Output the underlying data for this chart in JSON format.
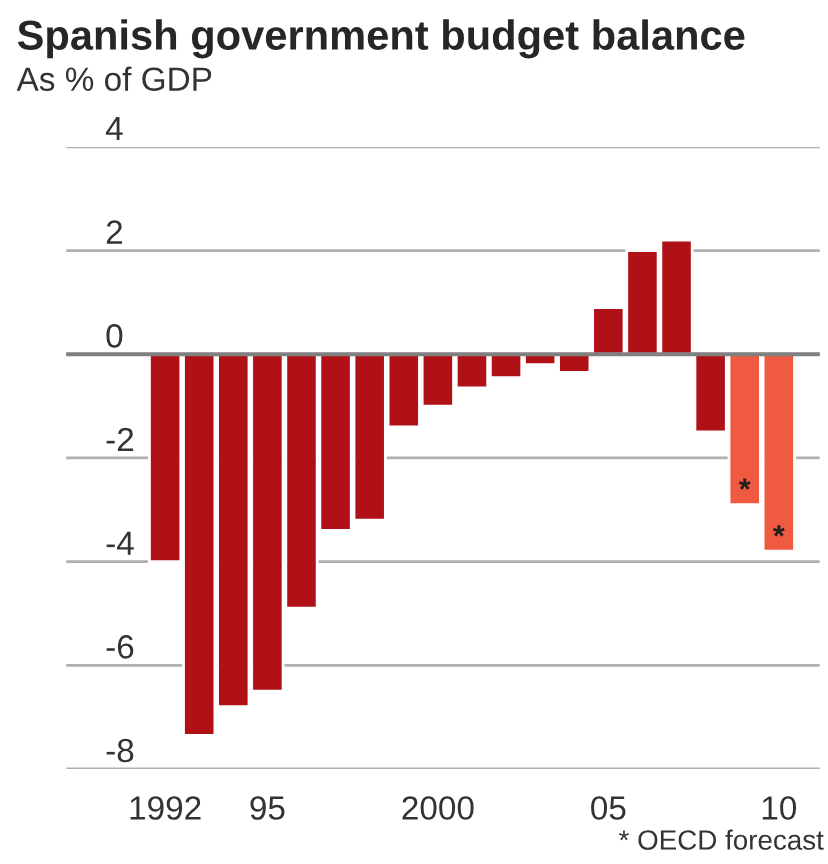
{
  "chart_data": {
    "type": "bar",
    "title": "Spanish government budget balance",
    "subtitle": "As % of GDP",
    "categories": [
      "1992",
      null,
      null,
      "95",
      null,
      null,
      null,
      null,
      "2000",
      null,
      null,
      null,
      null,
      "05",
      null,
      null,
      null,
      null,
      "10"
    ],
    "values": [
      -4.0,
      -7.35,
      -6.8,
      -6.5,
      -4.9,
      -3.4,
      -3.2,
      -1.4,
      -1.0,
      -0.65,
      -0.45,
      -0.2,
      -0.35,
      0.9,
      2.0,
      2.2,
      -1.5,
      -2.9,
      -3.8
    ],
    "colors": [
      "#b01117",
      "#b01117",
      "#b01117",
      "#b01117",
      "#b01117",
      "#b01117",
      "#b01117",
      "#b01117",
      "#b01117",
      "#b01117",
      "#b01117",
      "#b01117",
      "#b01117",
      "#b01117",
      "#b01117",
      "#b01117",
      "#b01117",
      "#f05a40",
      "#f05a40"
    ],
    "value_labels": [
      null,
      null,
      null,
      null,
      null,
      null,
      null,
      null,
      null,
      null,
      null,
      null,
      null,
      null,
      null,
      null,
      null,
      "*",
      "*"
    ],
    "ylim": [
      -8,
      4
    ],
    "yticks": [
      -8,
      -6,
      -4,
      -2,
      0,
      2,
      4
    ],
    "grid": "y",
    "ref_lines": [
      {
        "axis": "y",
        "value": 0,
        "color": "#808080"
      }
    ],
    "annotations": [
      "* OECD forecast"
    ]
  }
}
